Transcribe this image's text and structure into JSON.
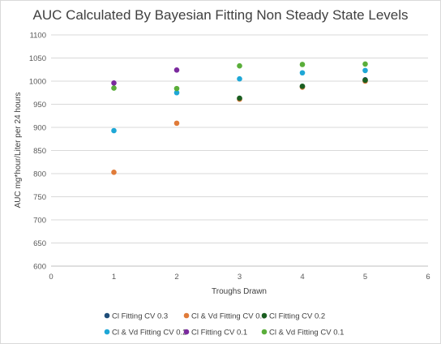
{
  "chart_data": {
    "type": "scatter",
    "title": "AUC Calculated By Bayesian Fitting Non Steady State Levels",
    "xlabel": "Troughs Drawn",
    "ylabel": "AUC mg*hour/Liter per 24 hours",
    "xlim": [
      0,
      6
    ],
    "ylim": [
      600,
      1100
    ],
    "x_ticks": [
      "0",
      "1",
      "2",
      "3",
      "4",
      "5",
      "6"
    ],
    "y_ticks": [
      "600",
      "650",
      "700",
      "750",
      "800",
      "850",
      "900",
      "950",
      "1000",
      "1050",
      "1100"
    ],
    "grid": "horizontal",
    "legend_position": "bottom",
    "series": [
      {
        "name": "Cl Fitting CV 0.3",
        "color": "#1f4e79",
        "x": [
          4,
          5
        ],
        "y": [
          988,
          1003
        ]
      },
      {
        "name": "Cl & Vd Fitting CV 0.3",
        "color": "#e07b39",
        "x": [
          1,
          2,
          3,
          4,
          5
        ],
        "y": [
          803,
          909,
          961,
          987,
          1000
        ]
      },
      {
        "name": "Cl Fitting CV 0.2",
        "color": "#1a5e20",
        "x": [
          3,
          4,
          5
        ],
        "y": [
          963,
          989,
          1002
        ]
      },
      {
        "name": "Cl & Vd Fitting CV 0.2",
        "color": "#1ea7d6",
        "x": [
          1,
          2,
          3,
          4,
          5
        ],
        "y": [
          893,
          975,
          1005,
          1018,
          1023
        ]
      },
      {
        "name": "Cl Fitting CV 0.1",
        "color": "#7b2a9e",
        "x": [
          1,
          2
        ],
        "y": [
          996,
          1024
        ]
      },
      {
        "name": "Cl & Vd Fitting CV 0.1",
        "color": "#5aae3a",
        "x": [
          1,
          2,
          3,
          4,
          5
        ],
        "y": [
          985,
          984,
          1033,
          1036,
          1037
        ]
      }
    ]
  }
}
